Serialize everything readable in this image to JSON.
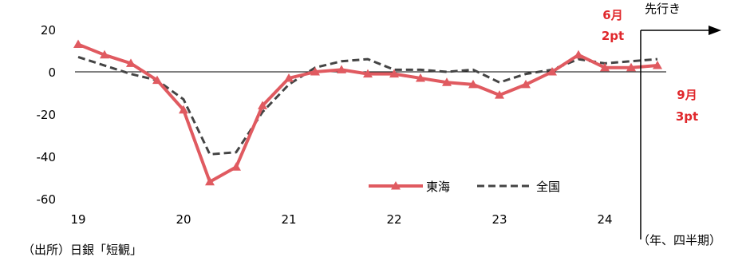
{
  "chart_data": {
    "type": "line",
    "x_ticks": [
      "19",
      "20",
      "21",
      "22",
      "23",
      "24"
    ],
    "quarters_per_year": 4,
    "ylim": [
      -60,
      20
    ],
    "y_ticks": [
      -60,
      -40,
      -20,
      0,
      20
    ],
    "series": [
      {
        "name": "東海",
        "color": "#e05a60",
        "style": "solid-triangle",
        "values": [
          13,
          8,
          4,
          -4,
          -18,
          -52,
          -45,
          -16,
          -3,
          0,
          1,
          -1,
          -1,
          -3,
          -5,
          -6,
          -11,
          -6,
          0,
          8,
          2,
          2,
          3
        ]
      },
      {
        "name": "全国",
        "color": "#444444",
        "style": "dashed",
        "values": [
          7,
          3,
          -1,
          -4,
          -13,
          -39,
          -38,
          -19,
          -6,
          2,
          5,
          6,
          1,
          1,
          0,
          1,
          -5,
          -1,
          1,
          6,
          4,
          5,
          6
        ]
      }
    ],
    "annotations": {
      "forecast_label": "先行き",
      "june_label": "6月",
      "june_value": "2pt",
      "sept_label": "9月",
      "sept_value": "3pt"
    },
    "source": "（出所）日銀「短観」",
    "x_unit": "（年、四半期）",
    "legend_position": "bottom-right"
  }
}
